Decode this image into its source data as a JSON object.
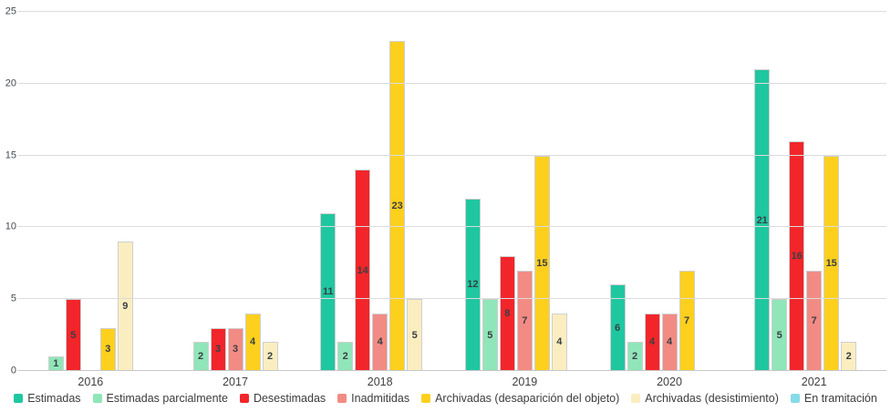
{
  "chart_data": {
    "type": "bar",
    "title": "",
    "xlabel": "",
    "ylabel": "",
    "categories": [
      "2016",
      "2017",
      "2018",
      "2019",
      "2020",
      "2021"
    ],
    "series": [
      {
        "name": "Estimadas",
        "color": "#1fc7a0",
        "values": [
          0,
          0,
          11,
          12,
          6,
          21
        ]
      },
      {
        "name": "Estimadas parcialmente",
        "color": "#90e6b8",
        "values": [
          1,
          2,
          2,
          5,
          2,
          5
        ]
      },
      {
        "name": "Desestimadas",
        "color": "#f2252a",
        "values": [
          5,
          3,
          14,
          8,
          4,
          16
        ]
      },
      {
        "name": "Inadmitidas",
        "color": "#f28b84",
        "values": [
          0,
          3,
          4,
          7,
          4,
          7
        ]
      },
      {
        "name": "Archivadas (desaparición del objeto)",
        "color": "#fdd01e",
        "values": [
          3,
          4,
          23,
          15,
          7,
          15
        ]
      },
      {
        "name": "Archivadas (desistimiento)",
        "color": "#faeec0",
        "values": [
          9,
          2,
          5,
          4,
          0,
          2
        ]
      },
      {
        "name": "En tramitación",
        "color": "#87dbe8",
        "values": [
          0,
          0,
          0,
          0,
          0,
          0
        ]
      }
    ],
    "ylim": [
      0,
      25
    ],
    "yticks": [
      0,
      5,
      10,
      15,
      20,
      25
    ],
    "grid": true,
    "legend_position": "bottom",
    "show_value_labels": true
  },
  "colors": {
    "background": "#ffffff",
    "gridline": "#dcdcdc",
    "axis_line": "#c6c6c6",
    "tick_label": "#444a50",
    "bar_label": "#3a3f44",
    "bar_border": "#cfcfcf"
  }
}
